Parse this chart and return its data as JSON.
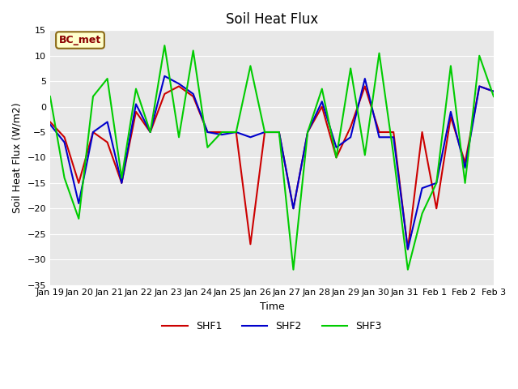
{
  "title": "Soil Heat Flux",
  "xlabel": "Time",
  "ylabel": "Soil Heat Flux (W/m2)",
  "ylim": [
    -35,
    15
  ],
  "yticks": [
    -35,
    -30,
    -25,
    -20,
    -15,
    -10,
    -5,
    0,
    5,
    10,
    15
  ],
  "x_labels": [
    "Jan 19",
    "Jan 20",
    "Jan 21",
    "Jan 22",
    "Jan 23",
    "Jan 24",
    "Jan 25",
    "Jan 26",
    "Jan 27",
    "Jan 28",
    "Jan 29",
    "Jan 30",
    "Jan 31",
    "Feb 1",
    "Feb 2",
    "Feb 3"
  ],
  "SHF1": [
    -3,
    -6,
    -15,
    -5,
    -7,
    -15,
    -1,
    -5,
    2.5,
    4,
    2,
    -5,
    -5,
    -5,
    -27,
    -5,
    -5,
    -20,
    -5,
    0,
    -10,
    -4,
    4,
    -5,
    -5,
    -28,
    -5,
    -20,
    -2,
    -11,
    4,
    3
  ],
  "SHF2": [
    -3.5,
    -7,
    -19,
    -5,
    -3,
    -15,
    0.5,
    -5,
    6,
    4.5,
    2.5,
    -5,
    -5.5,
    -5,
    -6,
    -5,
    -5,
    -20,
    -5,
    1,
    -8,
    -6,
    5.5,
    -6,
    -6,
    -28,
    -16,
    -15,
    -1,
    -12,
    4,
    3
  ],
  "SHF3": [
    2,
    -14,
    -22,
    2,
    5.5,
    -14,
    3.5,
    -5,
    12,
    -6,
    11,
    -8,
    -5,
    -5,
    8,
    -5,
    -5,
    -32,
    -5,
    3.5,
    -10,
    7.5,
    -9.5,
    10.5,
    -9.5,
    -32,
    -21,
    -15,
    8,
    -15,
    10,
    2
  ],
  "legend_label": "BC_met",
  "bg_color": "#e8e8e8",
  "line_color_SHF1": "#cc0000",
  "line_color_SHF2": "#0000cc",
  "line_color_SHF3": "#00cc00",
  "line_width": 1.5
}
